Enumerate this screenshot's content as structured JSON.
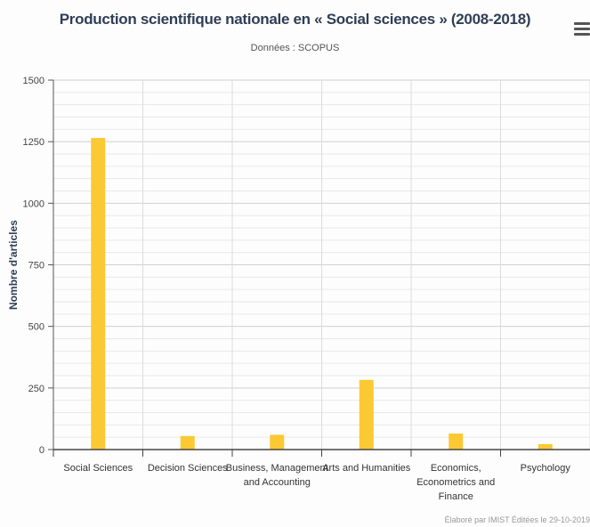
{
  "title": "Production scientifique nationale en « Social sciences » (2008-2018)",
  "subtitle": "Données : SCOPUS",
  "credit": "Élaboré par IMIST Éditées le 29-10-2019",
  "menu_icon": "hamburger-menu-icon",
  "colors": {
    "bar": "#fbc934",
    "grid": "#d8d8d8",
    "axis": "#555555",
    "ylabel": "#2f3e55"
  },
  "chart_data": {
    "type": "bar",
    "title": "Production scientifique nationale en « Social sciences » (2008-2018)",
    "subtitle": "Données : SCOPUS",
    "xlabel": "",
    "ylabel": "Nombre d'articles",
    "ylim": [
      0,
      1500
    ],
    "yticks": [
      0,
      250,
      500,
      750,
      1000,
      1250,
      1500
    ],
    "grid": true,
    "categories": [
      "Social Sciences",
      "Decision Sciences",
      "Business, Management and Accounting",
      "Arts and Humanities",
      "Economics, Econometrics and Finance",
      "Psychology"
    ],
    "category_lines": [
      [
        "Social Sciences"
      ],
      [
        "Decision Sciences"
      ],
      [
        "Business, Management",
        "and Accounting"
      ],
      [
        "Arts and Humanities"
      ],
      [
        "Economics,",
        "Econometrics and",
        "Finance"
      ],
      [
        "Psychology"
      ]
    ],
    "values": [
      1265,
      55,
      60,
      283,
      65,
      22
    ]
  }
}
